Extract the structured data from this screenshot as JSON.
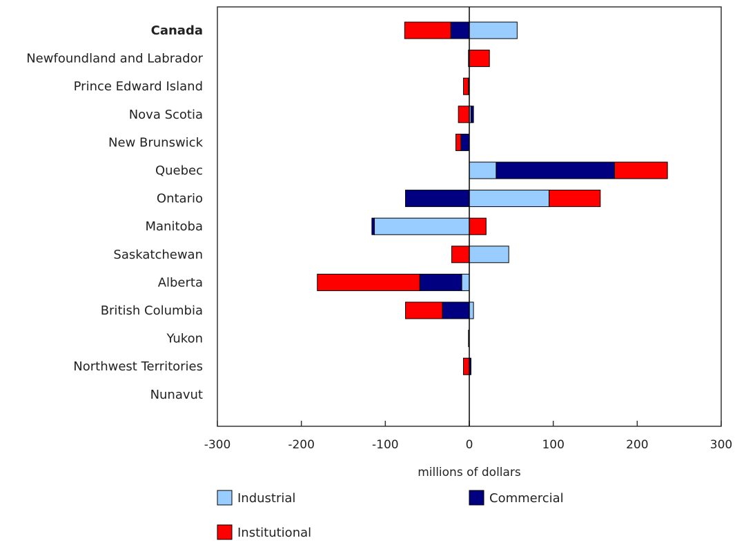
{
  "chart_data": {
    "type": "bar",
    "orientation": "horizontal",
    "stacked": true,
    "title": "",
    "xlabel": "millions of dollars",
    "ylabel": "",
    "xlim": [
      -300,
      300
    ],
    "xticks": [
      "-300",
      "-200",
      "-100",
      "0",
      "100",
      "200",
      "300"
    ],
    "grid": false,
    "legend_position": "bottom",
    "categories": [
      "Canada",
      "Newfoundland and Labrador",
      "Prince Edward Island",
      "Nova Scotia",
      "New Brunswick",
      "Quebec",
      "Ontario",
      "Manitoba",
      "Saskatchewan",
      "Alberta",
      "British Columbia",
      "Yukon",
      "Northwest Territories",
      "Nunavut"
    ],
    "bold_category": "Canada",
    "series": [
      {
        "name": "Industrial",
        "color": "#99ccff",
        "values": [
          57,
          -1,
          0,
          2,
          0,
          32,
          95,
          -113,
          47,
          -9,
          5,
          -1,
          0,
          0
        ]
      },
      {
        "name": "Commercial",
        "color": "#000080",
        "values": [
          -22,
          0,
          -1,
          3,
          -10,
          141,
          -76,
          -3,
          0,
          -50,
          -32,
          0,
          2,
          0
        ]
      },
      {
        "name": "Institutional",
        "color": "#ff0000",
        "values": [
          -55,
          24,
          -6,
          -13,
          -6,
          63,
          61,
          20,
          -21,
          -122,
          -44,
          0,
          -7,
          0
        ]
      }
    ]
  }
}
